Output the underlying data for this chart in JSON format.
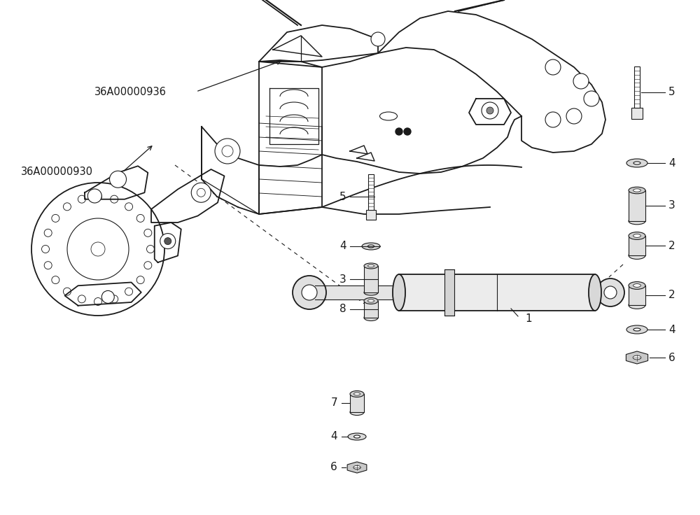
{
  "bg_color": "#ffffff",
  "line_color": "#1a1a1a",
  "label_36A936": "36A00000936",
  "label_36A930": "36A00000930",
  "figsize": [
    10.0,
    7.36
  ],
  "dpi": 100
}
